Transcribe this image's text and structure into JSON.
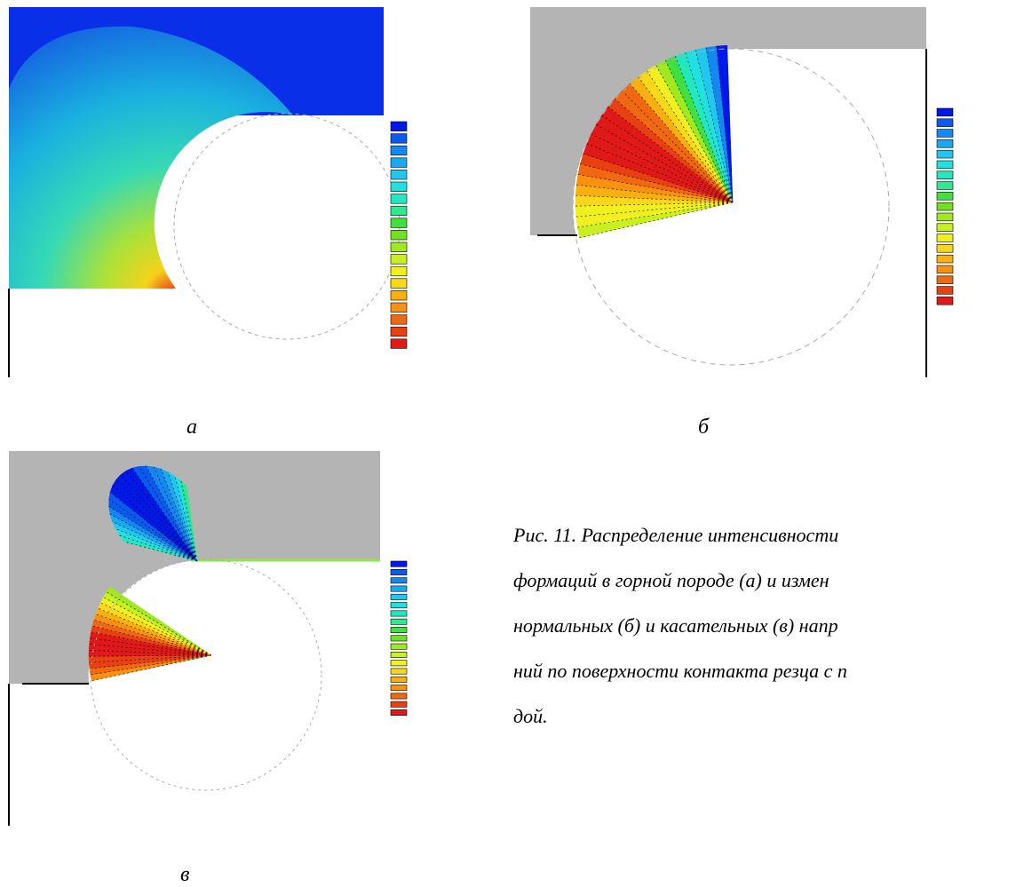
{
  "panels": [
    {
      "label": "а"
    },
    {
      "label": "б"
    },
    {
      "label": "в"
    }
  ],
  "caption": {
    "lines": [
      "Рис. 11. Распределение интенсивности",
      "формаций в горной породе (а) и измен",
      "нормальных (б) и касательных (в) напр",
      "ний по поверхности контакта резца с п",
      "дой."
    ]
  }
}
